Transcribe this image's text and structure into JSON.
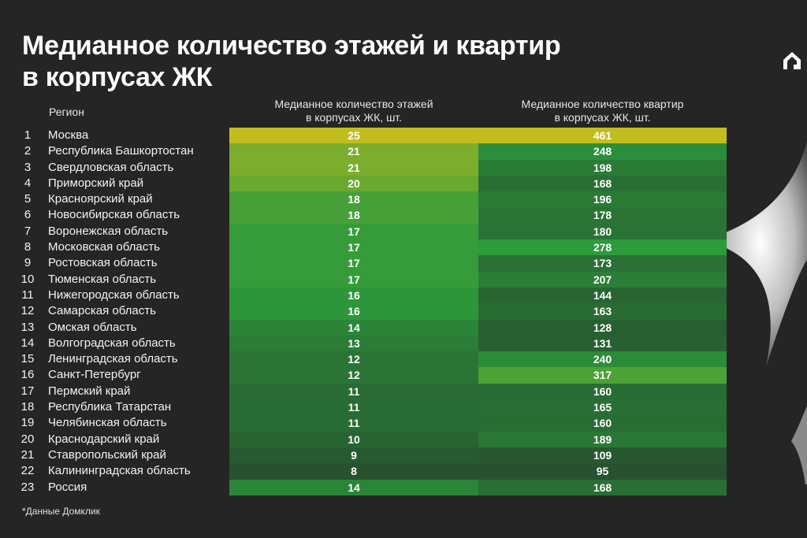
{
  "title_lines": [
    "Медианное количество этажей и квартир",
    "в корпусах ЖК"
  ],
  "headers": {
    "region": "Регион",
    "floors_lines": [
      "Медианное количество этажей",
      "в корпусах ЖК, шт."
    ],
    "apartments_lines": [
      "Медианное количество квартир",
      "в корпусах ЖК, шт."
    ]
  },
  "footnote": "*Данные Домклик",
  "chart_data": {
    "type": "table",
    "title": "Медианное количество этажей и квартир в корпусах ЖК",
    "columns": [
      "",
      "Регион",
      "Медианное количество этажей в корпусах ЖК, шт.",
      "Медианное количество квартир в корпусах ЖК, шт."
    ],
    "rows": [
      {
        "rank": "1",
        "region": "Москва",
        "floors": 25,
        "apartments": 461
      },
      {
        "rank": "2",
        "region": "Республика Башкортостан",
        "floors": 21,
        "apartments": 248
      },
      {
        "rank": "3",
        "region": "Свердловская область",
        "floors": 21,
        "apartments": 198
      },
      {
        "rank": "4",
        "region": "Приморский край",
        "floors": 20,
        "apartments": 168
      },
      {
        "rank": "5",
        "region": "Красноярский край",
        "floors": 18,
        "apartments": 196
      },
      {
        "rank": "6",
        "region": "Новосибирская область",
        "floors": 18,
        "apartments": 178
      },
      {
        "rank": "7",
        "region": "Воронежская область",
        "floors": 17,
        "apartments": 180
      },
      {
        "rank": "8",
        "region": "Московская область",
        "floors": 17,
        "apartments": 278
      },
      {
        "rank": "9",
        "region": "Ростовская область",
        "floors": 17,
        "apartments": 173
      },
      {
        "rank": "10",
        "region": "Тюменская область",
        "floors": 17,
        "apartments": 207
      },
      {
        "rank": "11",
        "region": "Нижегородская область",
        "floors": 16,
        "apartments": 144
      },
      {
        "rank": "12",
        "region": "Самарская область",
        "floors": 16,
        "apartments": 163
      },
      {
        "rank": "13",
        "region": "Омская область",
        "floors": 14,
        "apartments": 128
      },
      {
        "rank": "14",
        "region": "Волгоградская область",
        "floors": 13,
        "apartments": 131
      },
      {
        "rank": "15",
        "region": "Ленинградская область",
        "floors": 12,
        "apartments": 240
      },
      {
        "rank": "16",
        "region": "Санкт-Петербург",
        "floors": 12,
        "apartments": 317
      },
      {
        "rank": "17",
        "region": "Пермский край",
        "floors": 11,
        "apartments": 160
      },
      {
        "rank": "18",
        "region": "Республика Татарстан",
        "floors": 11,
        "apartments": 165
      },
      {
        "rank": "19",
        "region": "Челябинская область",
        "floors": 11,
        "apartments": 160
      },
      {
        "rank": "20",
        "region": "Краснодарский край",
        "floors": 10,
        "apartments": 189
      },
      {
        "rank": "21",
        "region": "Ставропольский край",
        "floors": 9,
        "apartments": 109
      },
      {
        "rank": "22",
        "region": "Калининградская область",
        "floors": 8,
        "apartments": 95
      },
      {
        "rank": "23",
        "region": "Россия",
        "floors": 14,
        "apartments": 168
      }
    ],
    "color_scale": {
      "low": "#27522f",
      "mid": "#2d9a3c",
      "high": "#c2bd1e"
    }
  }
}
